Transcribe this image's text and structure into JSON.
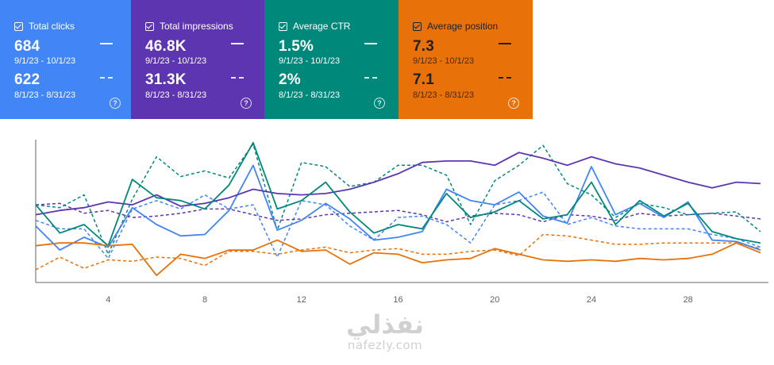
{
  "cards": [
    {
      "key": "clicks",
      "title": "Total clicks",
      "current_value": "684",
      "current_range": "9/1/23 - 10/1/23",
      "previous_value": "622",
      "previous_range": "8/1/23 - 8/31/23",
      "color": "#4285f4"
    },
    {
      "key": "impressions",
      "title": "Total impressions",
      "current_value": "46.8K",
      "current_range": "9/1/23 - 10/1/23",
      "previous_value": "31.3K",
      "previous_range": "8/1/23 - 8/31/23",
      "color": "#5e35b1"
    },
    {
      "key": "ctr",
      "title": "Average CTR",
      "current_value": "1.5%",
      "current_range": "9/1/23 - 10/1/23",
      "previous_value": "2%",
      "previous_range": "8/1/23 - 8/31/23",
      "color": "#00897b"
    },
    {
      "key": "position",
      "title": "Average position",
      "current_value": "7.3",
      "current_range": "9/1/23 - 10/1/23",
      "previous_value": "7.1",
      "previous_range": "8/1/23 - 8/31/23",
      "color": "#e8710a"
    }
  ],
  "help_glyph": "?",
  "chart_data": {
    "type": "line",
    "x_ticks": [
      4,
      8,
      12,
      16,
      20,
      24,
      28
    ],
    "xlim": [
      1,
      31
    ],
    "ylim": [
      0,
      100
    ],
    "grid": false,
    "series": [
      {
        "metric": "clicks",
        "period": "current",
        "style": "solid",
        "color": "#4285f4",
        "x": [
          1,
          2,
          3,
          4,
          5,
          6,
          7,
          8,
          9,
          10,
          11,
          12,
          13,
          14,
          15,
          16,
          17,
          18,
          19,
          20,
          21,
          22,
          23,
          24,
          25,
          26,
          27,
          28,
          29,
          30,
          31
        ],
        "values": [
          40,
          23,
          32,
          25,
          53,
          41,
          33,
          34,
          51,
          83,
          37,
          44,
          56,
          45,
          30,
          32,
          36,
          66,
          58,
          55,
          64,
          47,
          42,
          82,
          48,
          56,
          46,
          57,
          30,
          29,
          23
        ]
      },
      {
        "metric": "clicks",
        "period": "previous",
        "style": "dash",
        "color": "#4285f4",
        "x": [
          1,
          2,
          3,
          4,
          5,
          6,
          7,
          8,
          9,
          10,
          11,
          12,
          13,
          14,
          15,
          16,
          17,
          18,
          19,
          20,
          21,
          22,
          23,
          24,
          25,
          26,
          27,
          28,
          29,
          30,
          31
        ],
        "values": [
          44,
          38,
          38,
          17,
          52,
          58,
          52,
          62,
          52,
          55,
          18,
          58,
          55,
          40,
          30,
          46,
          47,
          41,
          28,
          55,
          58,
          64,
          41,
          46,
          40,
          38,
          38,
          38,
          34,
          31,
          25
        ]
      },
      {
        "metric": "impressions",
        "period": "current",
        "style": "solid",
        "color": "#5e35b1",
        "x": [
          1,
          2,
          3,
          4,
          5,
          6,
          7,
          8,
          9,
          10,
          11,
          12,
          13,
          14,
          15,
          16,
          17,
          18,
          19,
          20,
          21,
          22,
          23,
          24,
          25,
          26,
          27,
          28,
          29,
          30,
          31
        ],
        "values": [
          48,
          51,
          53,
          57,
          55,
          62,
          54,
          56,
          60,
          66,
          63,
          62,
          63,
          66,
          71,
          77,
          85,
          86,
          86,
          83,
          92,
          88,
          83,
          89,
          84,
          81,
          76,
          71,
          67,
          71,
          70
        ]
      },
      {
        "metric": "impressions",
        "period": "previous",
        "style": "dash",
        "color": "#5e35b1",
        "x": [
          1,
          2,
          3,
          4,
          5,
          6,
          7,
          8,
          9,
          10,
          11,
          12,
          13,
          14,
          15,
          16,
          17,
          18,
          19,
          20,
          21,
          22,
          23,
          24,
          25,
          26,
          27,
          28,
          29,
          30,
          31
        ],
        "values": [
          55,
          56,
          49,
          51,
          46,
          47,
          49,
          52,
          52,
          48,
          44,
          45,
          48,
          49,
          50,
          51,
          48,
          43,
          47,
          49,
          48,
          43,
          48,
          47,
          44,
          49,
          47,
          48,
          49,
          47,
          45
        ]
      },
      {
        "metric": "ctr",
        "period": "current",
        "style": "solid",
        "color": "#00897b",
        "x": [
          1,
          2,
          3,
          4,
          5,
          6,
          7,
          8,
          9,
          10,
          11,
          12,
          13,
          14,
          15,
          16,
          17,
          18,
          19,
          20,
          21,
          22,
          23,
          24,
          25,
          26,
          27,
          28,
          29,
          30,
          31
        ],
        "values": [
          55,
          35,
          41,
          26,
          73,
          60,
          58,
          52,
          69,
          99,
          52,
          58,
          71,
          50,
          35,
          41,
          38,
          63,
          46,
          50,
          58,
          45,
          48,
          71,
          41,
          58,
          47,
          56,
          36,
          31,
          28
        ]
      },
      {
        "metric": "ctr",
        "period": "previous",
        "style": "dash",
        "color": "#00897b",
        "x": [
          1,
          2,
          3,
          4,
          5,
          6,
          7,
          8,
          9,
          10,
          11,
          12,
          13,
          14,
          15,
          16,
          17,
          18,
          19,
          20,
          21,
          22,
          23,
          24,
          25,
          26,
          27,
          28,
          29,
          30,
          31
        ],
        "values": [
          55,
          53,
          62,
          20,
          59,
          89,
          75,
          79,
          74,
          98,
          37,
          85,
          82,
          68,
          71,
          83,
          83,
          76,
          41,
          72,
          83,
          97,
          70,
          62,
          46,
          56,
          53,
          48,
          49,
          50,
          36
        ]
      },
      {
        "metric": "position",
        "period": "current",
        "style": "solid",
        "color": "#e8710a",
        "x": [
          1,
          2,
          3,
          4,
          5,
          6,
          7,
          8,
          9,
          10,
          11,
          12,
          13,
          14,
          15,
          16,
          17,
          18,
          19,
          20,
          21,
          22,
          23,
          24,
          25,
          26,
          27,
          28,
          29,
          30,
          31
        ],
        "values": [
          26,
          28,
          28,
          26,
          27,
          5,
          20,
          17,
          23,
          23,
          30,
          22,
          23,
          13,
          21,
          20,
          14,
          16,
          17,
          24,
          20,
          16,
          15,
          16,
          15,
          17,
          16,
          17,
          20,
          28,
          21
        ]
      },
      {
        "metric": "position",
        "period": "previous",
        "style": "dash",
        "color": "#e8710a",
        "x": [
          1,
          2,
          3,
          4,
          5,
          6,
          7,
          8,
          9,
          10,
          11,
          12,
          13,
          14,
          15,
          16,
          17,
          18,
          19,
          20,
          21,
          22,
          23,
          24,
          25,
          26,
          27,
          28,
          29,
          30,
          31
        ],
        "values": [
          9,
          18,
          10,
          16,
          15,
          18,
          17,
          12,
          22,
          22,
          20,
          23,
          25,
          21,
          23,
          24,
          20,
          20,
          22,
          23,
          19,
          34,
          33,
          30,
          27,
          27,
          28,
          28,
          28,
          28,
          24
        ]
      }
    ]
  },
  "watermark": {
    "logo": "نفذلي",
    "site": "nafezly.com"
  }
}
